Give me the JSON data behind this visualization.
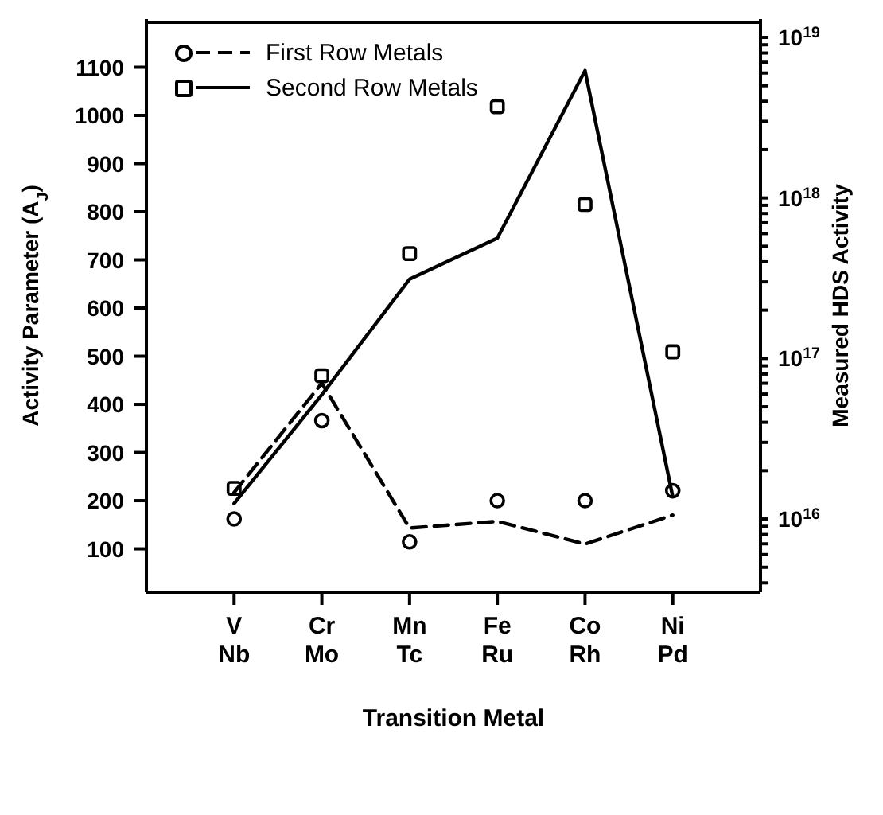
{
  "chart_data": {
    "type": "line",
    "xlabel": "Transition Metal",
    "ylabel": "Activity Parameter (A$_{J}$)",
    "y2label": "Measured HDS Activity",
    "categories": [
      "V\nNb",
      "Cr\nMo",
      "Mn\nTc",
      "Fe\nRu",
      "Co\nRh",
      "Ni\nPd"
    ],
    "series": [
      {
        "name": "First Row Metals",
        "color": "#000000",
        "line_style": "dashed",
        "values": [
          217,
          444,
          143,
          157,
          110,
          170
        ]
      },
      {
        "name": "Second Row Metals",
        "color": "#000000",
        "line_style": "solid",
        "values": [
          194,
          420,
          660,
          745,
          1093,
          208
        ]
      },
      {
        "type": "scatter",
        "axis": "y2",
        "color": "#000000",
        "marker": "circle",
        "values": [
          1e+16,
          4.1e+16,
          7200000000000000.0,
          1.3e+16,
          1.3e+16,
          1.5e+16
        ]
      },
      {
        "type": "scatter",
        "axis": "y2",
        "color": "#000000",
        "marker": "square",
        "values": [
          1.55e+16,
          7.8e+16,
          4.5e+17,
          3.7e+18,
          9.1e+17,
          1.1e+17
        ]
      }
    ],
    "ylim": [
      10,
      1200
    ],
    "yticks": [
      100,
      200,
      300,
      400,
      500,
      600,
      700,
      800,
      900,
      1000,
      1100
    ],
    "log": "y2",
    "y2lim": [
      3500000000000000.0,
      1.3e+19
    ],
    "y2ticks": [
      {
        "value": 4000000000000000.0,
        "label": null
      },
      {
        "value": 5000000000000000.0,
        "label": null
      },
      {
        "value": 6000000000000000.0,
        "label": null
      },
      {
        "value": 7000000000000000.0,
        "label": null
      },
      {
        "value": 8000000000000000.0,
        "label": null
      },
      {
        "value": 9000000000000000.0,
        "label": null
      },
      {
        "value": 1e+16,
        "label": "10$^{16}$"
      },
      {
        "value": 2e+16,
        "label": null
      },
      {
        "value": 3e+16,
        "label": null
      },
      {
        "value": 4e+16,
        "label": null
      },
      {
        "value": 5e+16,
        "label": null
      },
      {
        "value": 6e+16,
        "label": null
      },
      {
        "value": 7e+16,
        "label": null
      },
      {
        "value": 8e+16,
        "label": null
      },
      {
        "value": 9e+16,
        "label": null
      },
      {
        "value": 1e+17,
        "label": "10$^{17}$"
      },
      {
        "value": 2e+17,
        "label": null
      },
      {
        "value": 3e+17,
        "label": null
      },
      {
        "value": 4e+17,
        "label": null
      },
      {
        "value": 5e+17,
        "label": null
      },
      {
        "value": 6e+17,
        "label": null
      },
      {
        "value": 7e+17,
        "label": null
      },
      {
        "value": 8e+17,
        "label": null
      },
      {
        "value": 9e+17,
        "label": null
      },
      {
        "value": 1e+18,
        "label": "10$^{18}$"
      },
      {
        "value": 2e+18,
        "label": null
      },
      {
        "value": 3e+18,
        "label": null
      },
      {
        "value": 4e+18,
        "label": null
      },
      {
        "value": 5e+18,
        "label": null
      },
      {
        "value": 6e+18,
        "label": null
      },
      {
        "value": 7e+18,
        "label": null
      },
      {
        "value": 8e+18,
        "label": null
      },
      {
        "value": 9e+18,
        "label": null
      },
      {
        "value": 1e+19,
        "label": "10$^{19}$"
      }
    ],
    "legend": "top left"
  }
}
